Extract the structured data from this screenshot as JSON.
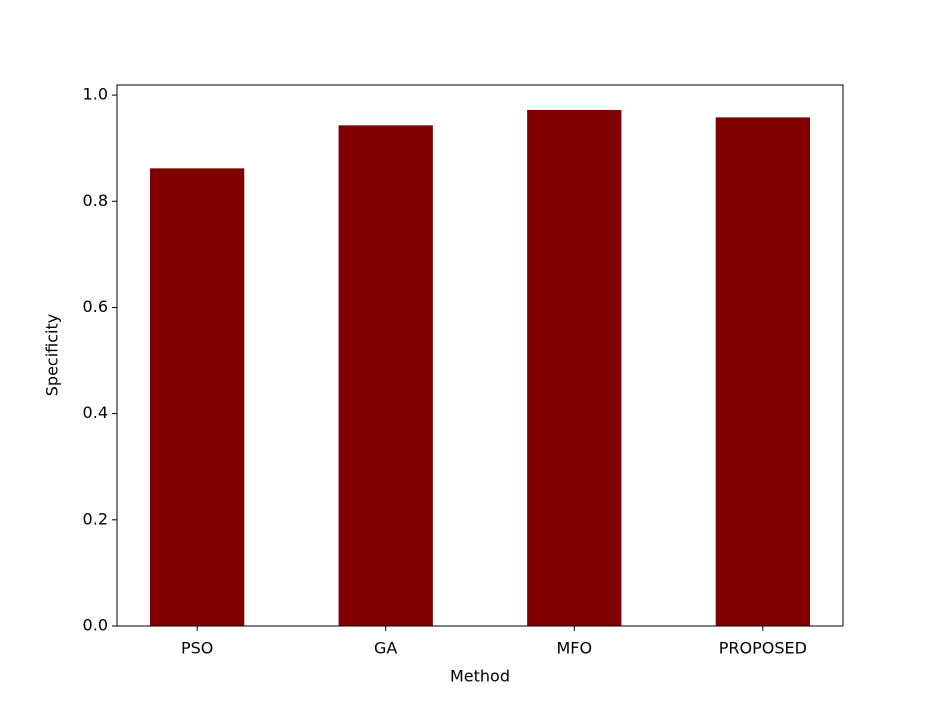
{
  "chart_data": {
    "type": "bar",
    "x_label": "Method",
    "y_label": "Specificity",
    "categories": [
      "PSO",
      "GA",
      "MFO",
      "PROPOSED"
    ],
    "values": [
      0.862,
      0.943,
      0.972,
      0.958
    ],
    "color": "#800000",
    "ylim": [
      0,
      1.019
    ],
    "yticks": [
      {
        "value": 0,
        "label": "0.0"
      },
      0.2,
      0.4,
      0.6,
      0.8,
      {
        "value": 1,
        "label": "1.0"
      }
    ],
    "grid": false
  }
}
